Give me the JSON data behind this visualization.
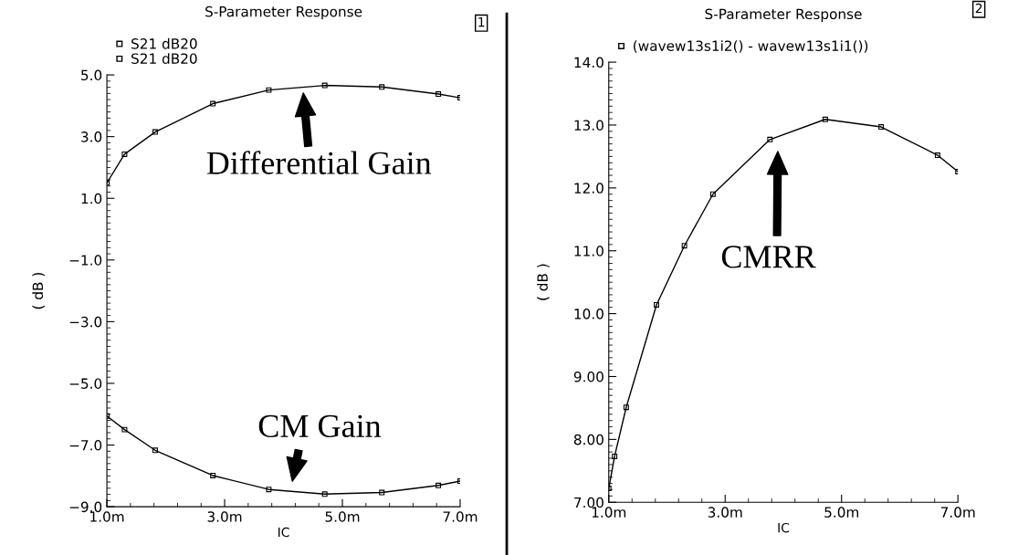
{
  "chart_data": [
    {
      "type": "line",
      "title": "S-Parameter Response",
      "xlabel": "IC",
      "ylabel": "( dB )",
      "x": [
        1.0,
        1.3,
        1.82,
        2.8,
        3.75,
        4.7,
        5.67,
        6.63,
        7.0
      ],
      "series": [
        {
          "name": "S21 dB20",
          "color": "#000000",
          "values": [
            1.5,
            2.43,
            3.15,
            4.07,
            4.51,
            4.66,
            4.61,
            4.38,
            4.26
          ]
        },
        {
          "name": "S21 dB20",
          "color": "#000000",
          "values": [
            -6.06,
            -6.5,
            -7.17,
            -7.99,
            -8.44,
            -8.59,
            -8.54,
            -8.31,
            -8.17
          ]
        }
      ],
      "xlim": [
        1,
        7
      ],
      "xticks": [
        {
          "value": 1,
          "label": "1.0m"
        },
        {
          "value": 3,
          "label": "3.0m"
        },
        {
          "value": 5,
          "label": "5.0m"
        },
        {
          "value": 7,
          "label": "7.0m"
        }
      ],
      "ylim": [
        -9,
        5
      ],
      "yticks": [
        {
          "value": -9,
          "label": "−9.0"
        },
        {
          "value": -7,
          "label": "−7.0"
        },
        {
          "value": -5,
          "label": "−5.0"
        },
        {
          "value": -3,
          "label": "−3.0"
        },
        {
          "value": -1,
          "label": "−1.0"
        },
        {
          "value": 1,
          "label": "1.0"
        },
        {
          "value": 3,
          "label": "3.0"
        },
        {
          "value": 5,
          "label": "5.0"
        }
      ],
      "marker": "square",
      "line_style": "solid",
      "legend": "top left",
      "grid": false,
      "annotations": [
        "Differential Gain",
        "CM Gain",
        "1"
      ]
    },
    {
      "type": "line",
      "title": "S-Parameter Response",
      "xlabel": "IC",
      "ylabel": "( dB )",
      "x": [
        1.0,
        1.1,
        1.3,
        1.82,
        2.3,
        2.79,
        3.77,
        4.72,
        5.68,
        6.65,
        7.0
      ],
      "series": [
        {
          "name": "(wavew13s1i2() - wavew13s1i1())",
          "color": "#000000",
          "values": [
            7.22,
            7.73,
            8.51,
            10.14,
            11.08,
            11.9,
            12.77,
            13.09,
            12.97,
            12.52,
            12.26
          ]
        }
      ],
      "xlim": [
        1,
        7
      ],
      "xticks": [
        {
          "value": 1,
          "label": "1.0m"
        },
        {
          "value": 3,
          "label": "3.0m"
        },
        {
          "value": 5,
          "label": "5.0m"
        },
        {
          "value": 7,
          "label": "7.0m"
        }
      ],
      "ylim": [
        7,
        14
      ],
      "yticks": [
        {
          "value": 7,
          "label": "7.00"
        },
        {
          "value": 8,
          "label": "8.00"
        },
        {
          "value": 9,
          "label": "9.00"
        },
        {
          "value": 10,
          "label": "10.0"
        },
        {
          "value": 11,
          "label": "11.0"
        },
        {
          "value": 12,
          "label": "12.0"
        },
        {
          "value": 13,
          "label": "13.0"
        },
        {
          "value": 14,
          "label": "14.0"
        }
      ],
      "marker": "square",
      "line_style": "solid",
      "legend": "top left",
      "grid": false,
      "annotations": [
        "CMRR",
        "2"
      ]
    }
  ]
}
